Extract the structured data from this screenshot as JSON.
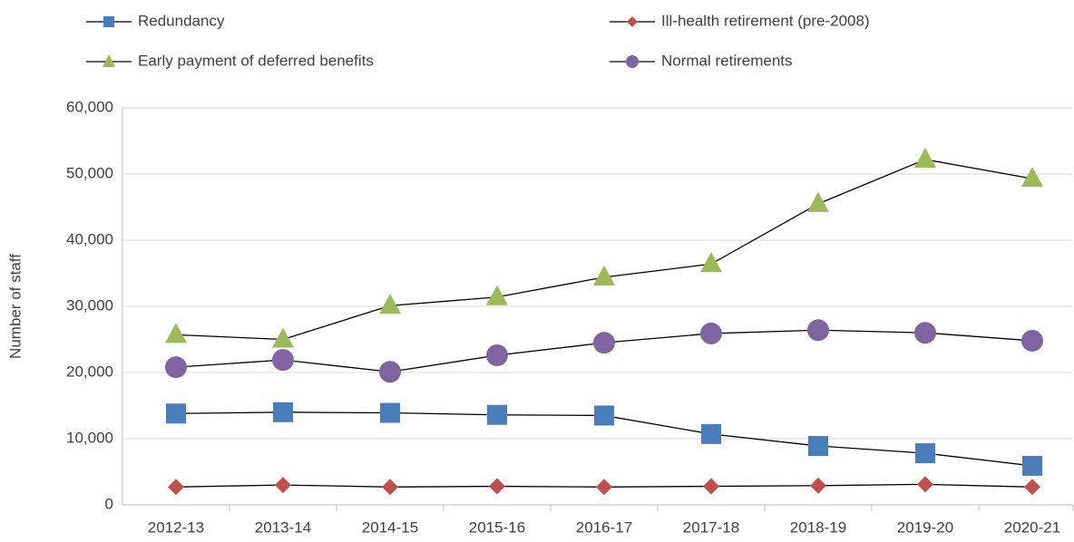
{
  "chart_data": {
    "type": "line",
    "y_label": "Number of staff",
    "categories": [
      "2012-13",
      "2013-14",
      "2014-15",
      "2015-16",
      "2016-17",
      "2017-18",
      "2018-19",
      "2019-20",
      "2020-21"
    ],
    "series": [
      {
        "name": "Redundancy",
        "color": "#4a7ebb",
        "marker": "square",
        "values": [
          13800,
          14000,
          13900,
          13600,
          13500,
          10700,
          8900,
          7800,
          5900
        ]
      },
      {
        "name": "Ill-health retirement (pre-2008)",
        "color": "#c0504d",
        "marker": "diamond",
        "values": [
          2700,
          3000,
          2700,
          2800,
          2700,
          2800,
          2900,
          3100,
          2700
        ]
      },
      {
        "name": "Early payment of deferred benefits",
        "color": "#9bbb59",
        "marker": "triangle",
        "values": [
          25700,
          25000,
          30100,
          31400,
          34400,
          36400,
          45500,
          52200,
          49300
        ]
      },
      {
        "name": "Normal retirements",
        "color": "#8064a2",
        "marker": "circle",
        "values": [
          20800,
          21900,
          20100,
          22600,
          24500,
          25900,
          26400,
          26000,
          24800
        ]
      }
    ],
    "ylim": [
      0,
      60000
    ],
    "yticks": [
      0,
      {
        "value": 10000,
        "label": "10,000"
      },
      {
        "value": 20000,
        "label": "20,000"
      },
      {
        "value": 30000,
        "label": "30,000"
      },
      {
        "value": 40000,
        "label": "40,000"
      },
      {
        "value": 50000,
        "label": "50,000"
      },
      {
        "value": 60000,
        "label": "60,000"
      }
    ],
    "grid": true,
    "legend": "top"
  }
}
